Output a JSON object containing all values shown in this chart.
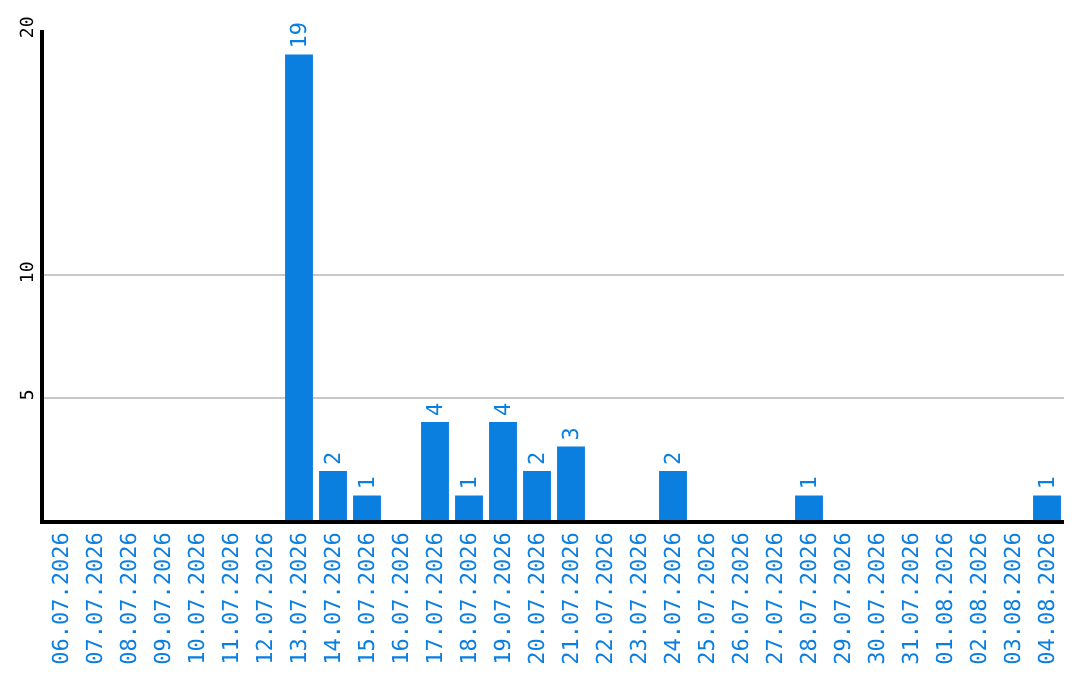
{
  "chart_data": {
    "type": "bar",
    "categories": [
      "06.07.2026",
      "07.07.2026",
      "08.07.2026",
      "09.07.2026",
      "10.07.2026",
      "11.07.2026",
      "12.07.2026",
      "13.07.2026",
      "14.07.2026",
      "15.07.2026",
      "16.07.2026",
      "17.07.2026",
      "18.07.2026",
      "19.07.2026",
      "20.07.2026",
      "21.07.2026",
      "22.07.2026",
      "23.07.2026",
      "24.07.2026",
      "25.07.2026",
      "26.07.2026",
      "27.07.2026",
      "28.07.2026",
      "29.07.2026",
      "30.07.2026",
      "31.07.2026",
      "01.08.2026",
      "02.08.2026",
      "03.08.2026",
      "04.08.2026"
    ],
    "values": [
      0,
      0,
      0,
      0,
      0,
      0,
      0,
      19,
      2,
      1,
      0,
      4,
      1,
      4,
      2,
      3,
      0,
      0,
      2,
      0,
      0,
      0,
      1,
      0,
      0,
      0,
      0,
      0,
      0,
      1
    ],
    "value_labels": [
      null,
      null,
      null,
      null,
      null,
      null,
      null,
      "19",
      "2",
      "1",
      null,
      "4",
      "1",
      "4",
      "2",
      "3",
      null,
      null,
      "2",
      null,
      null,
      null,
      "1",
      null,
      null,
      null,
      null,
      null,
      null,
      "1"
    ],
    "color": "#0a7fe0",
    "ylim": [
      0,
      20
    ],
    "yticks": [
      5,
      10,
      20
    ],
    "grid": "y",
    "legend": false
  }
}
